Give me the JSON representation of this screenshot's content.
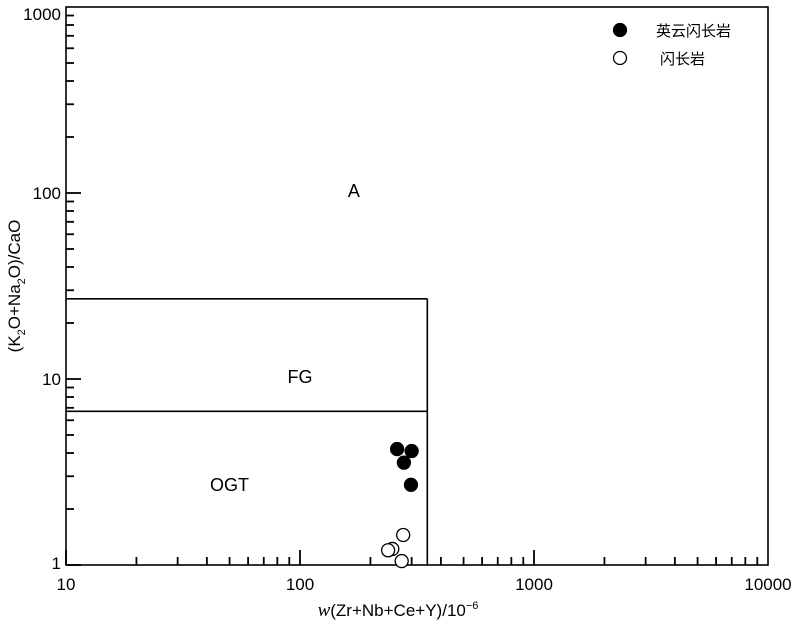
{
  "chart_data": {
    "type": "scatter",
    "xscale": "log",
    "yscale": "log",
    "xlim": [
      10,
      10000
    ],
    "ylim": [
      1,
      1000
    ],
    "xlabel": {
      "var": "w",
      "expr": "(Zr+Nb+Ce+Y)/10",
      "exp": "−6"
    },
    "ylabel": {
      "p1": "(K",
      "s1": "2",
      "p2": "O+Na",
      "s2": "2",
      "p3": "O)/CaO"
    },
    "x_tick_labels": [
      "10",
      "100",
      "1000",
      "10000"
    ],
    "y_tick_labels": [
      "1",
      "10",
      "100",
      "1000"
    ],
    "fields": [
      {
        "label": "A",
        "x": 170,
        "y": 95
      },
      {
        "label": "FG",
        "x": 100,
        "y": 9.5
      },
      {
        "label": "OGT",
        "x": 50,
        "y": 2.5
      }
    ],
    "boundaries": [
      {
        "name": "fg-upper",
        "x": [
          10,
          350
        ],
        "y": [
          27,
          27
        ]
      },
      {
        "name": "ogt-upper",
        "x": [
          10,
          350
        ],
        "y": [
          6.7,
          6.7
        ]
      },
      {
        "name": "x-cutoff",
        "x": [
          350,
          350
        ],
        "y": [
          1,
          27
        ]
      }
    ],
    "series": [
      {
        "name": "英云闪长岩",
        "marker": "filled",
        "color": "#000000",
        "x": [
          260,
          300,
          278,
          298
        ],
        "y": [
          4.2,
          4.1,
          3.55,
          2.7
        ]
      },
      {
        "name": "闪长岩",
        "marker": "open",
        "color": "#000000",
        "x": [
          276,
          248,
          238,
          272
        ],
        "y": [
          1.45,
          1.22,
          1.2,
          1.05
        ]
      }
    ],
    "legend_position": "top-right",
    "grid": false
  }
}
